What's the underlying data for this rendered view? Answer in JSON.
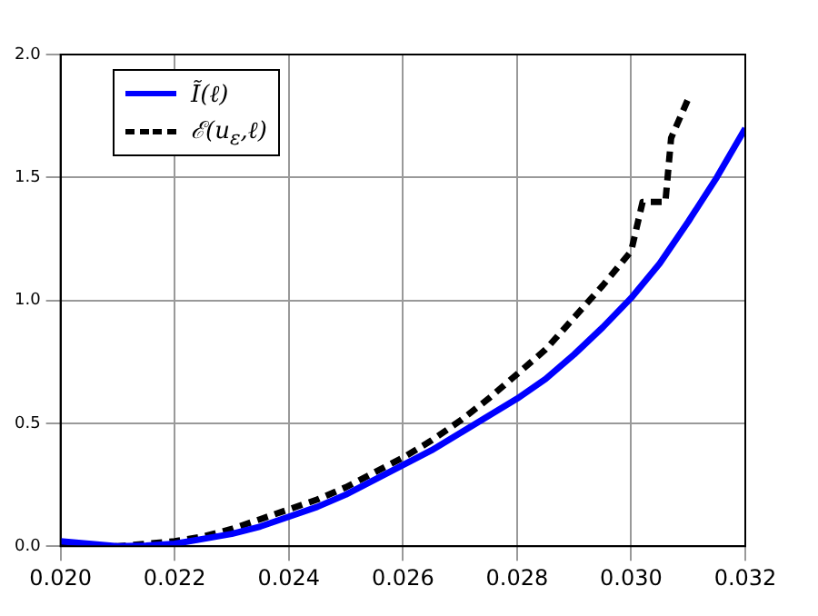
{
  "chart_data": {
    "type": "line",
    "xlim": [
      0.02,
      0.032
    ],
    "ylim": [
      0,
      2.0
    ],
    "xticks": [
      {
        "value": 0.02,
        "label": "0.020"
      },
      {
        "value": 0.022,
        "label": "0.022"
      },
      {
        "value": 0.024,
        "label": "0.024"
      },
      {
        "value": 0.026,
        "label": "0.026"
      },
      {
        "value": 0.028,
        "label": "0.028"
      },
      {
        "value": 0.03,
        "label": "0.030"
      },
      {
        "value": 0.032,
        "label": "0.032"
      }
    ],
    "yticks": [
      {
        "value": 0,
        "label": "0.0"
      },
      {
        "value": 0.5,
        "label": "0.5"
      },
      {
        "value": 1,
        "label": "1.0"
      },
      {
        "value": 1.5,
        "label": "1.5"
      },
      {
        "value": 2,
        "label": "2.0"
      }
    ],
    "grid": true,
    "legend": "top left",
    "marker": "none",
    "series": [
      {
        "name": "Ĩ(ℓ)",
        "color": "#0000ff",
        "line_style": "solid",
        "x": [
          0.02,
          0.0205,
          0.021,
          0.0215,
          0.022,
          0.0225,
          0.023,
          0.0235,
          0.024,
          0.0245,
          0.025,
          0.0255,
          0.026,
          0.0265,
          0.027,
          0.0275,
          0.028,
          0.0285,
          0.029,
          0.0295,
          0.03,
          0.0305,
          0.031,
          0.0315,
          0.032
        ],
        "values": [
          0.02,
          0.01,
          0,
          0.003,
          0.01,
          0.03,
          0.05,
          0.08,
          0.12,
          0.16,
          0.21,
          0.27,
          0.33,
          0.39,
          0.46,
          0.53,
          0.6,
          0.68,
          0.78,
          0.89,
          1.01,
          1.15,
          1.32,
          1.5,
          1.7
        ]
      },
      {
        "name": "ℰ(u$_{ε}$,ℓ)",
        "color": "#000000",
        "line_style": "dashed",
        "x": [
          0.02,
          0.0205,
          0.021,
          0.0215,
          0.022,
          0.0225,
          0.023,
          0.0235,
          0.024,
          0.0245,
          0.025,
          0.0255,
          0.026,
          0.0265,
          0.027,
          0.0275,
          0.028,
          0.0285,
          0.029,
          0.0295,
          0.03,
          0.0302,
          0.0306,
          0.0307,
          0.031
        ],
        "values": [
          0,
          0,
          0,
          0.01,
          0.02,
          0.04,
          0.07,
          0.11,
          0.15,
          0.19,
          0.24,
          0.3,
          0.36,
          0.43,
          0.51,
          0.6,
          0.7,
          0.8,
          0.93,
          1.06,
          1.2,
          1.4,
          1.4,
          1.66,
          1.82
        ]
      }
    ]
  }
}
